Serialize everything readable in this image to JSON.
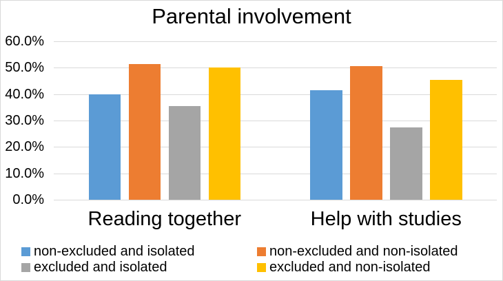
{
  "title": "Parental involvement",
  "chart_data": {
    "type": "bar",
    "title": "Parental involvement",
    "categories": [
      "Reading together",
      "Help with studies"
    ],
    "series": [
      {
        "name": "non-excluded and isolated",
        "color": "#5B9BD5",
        "values": [
          40.0,
          41.4
        ]
      },
      {
        "name": "non-excluded and non-isolated",
        "color": "#ED7D31",
        "values": [
          51.3,
          50.6
        ]
      },
      {
        "name": "excluded and isolated",
        "color": "#A5A5A5",
        "values": [
          35.4,
          27.4
        ]
      },
      {
        "name": "excluded and non-isolated",
        "color": "#FFC000",
        "values": [
          50.0,
          45.4
        ]
      }
    ],
    "xlabel": "",
    "ylabel": "",
    "ylim": [
      0,
      60
    ],
    "y_ticks": [
      {
        "value": 60,
        "label": "60.0%"
      },
      {
        "value": 50,
        "label": "50.0%"
      },
      {
        "value": 40,
        "label": "40.0%"
      },
      {
        "value": 30,
        "label": "30.0%"
      },
      {
        "value": 20,
        "label": "20.0%"
      },
      {
        "value": 10,
        "label": "10.0%"
      },
      {
        "value": 0,
        "label": "0.0%"
      }
    ],
    "grid": true,
    "legend_position": "bottom",
    "legend_columns": 2
  },
  "colors": {
    "background": "#FFFFFF",
    "border": "#D9D9D9",
    "gridline": "#D9D9D9",
    "text": "#000000"
  }
}
